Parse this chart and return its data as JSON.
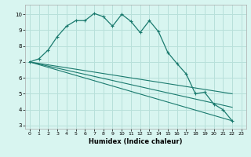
{
  "title": "",
  "xlabel": "Humidex (Indice chaleur)",
  "background_color": "#d8f5f0",
  "grid_color": "#b8e0da",
  "line_color": "#1a7a6e",
  "xlim": [
    -0.5,
    23.5
  ],
  "ylim": [
    2.8,
    10.6
  ],
  "xticks": [
    0,
    1,
    2,
    3,
    4,
    5,
    6,
    7,
    8,
    9,
    10,
    11,
    12,
    13,
    14,
    15,
    16,
    17,
    18,
    19,
    20,
    21,
    22,
    23
  ],
  "yticks": [
    3,
    4,
    5,
    6,
    7,
    8,
    9,
    10
  ],
  "main_line": {
    "x": [
      0,
      1,
      2,
      3,
      4,
      5,
      6,
      7,
      8,
      9,
      10,
      11,
      12,
      13,
      14,
      15,
      16,
      17,
      18,
      19,
      20,
      21,
      22
    ],
    "y": [
      7.0,
      7.2,
      7.75,
      8.6,
      9.25,
      9.6,
      9.6,
      10.05,
      9.85,
      9.25,
      10.0,
      9.55,
      8.85,
      9.6,
      8.9,
      7.6,
      6.9,
      6.25,
      5.0,
      5.1,
      4.35,
      4.0,
      3.3
    ]
  },
  "straight_lines": [
    {
      "x": [
        0,
        22
      ],
      "y": [
        7.0,
        5.0
      ]
    },
    {
      "x": [
        0,
        22
      ],
      "y": [
        7.0,
        3.3
      ]
    },
    {
      "x": [
        0,
        22
      ],
      "y": [
        7.0,
        4.15
      ]
    }
  ]
}
